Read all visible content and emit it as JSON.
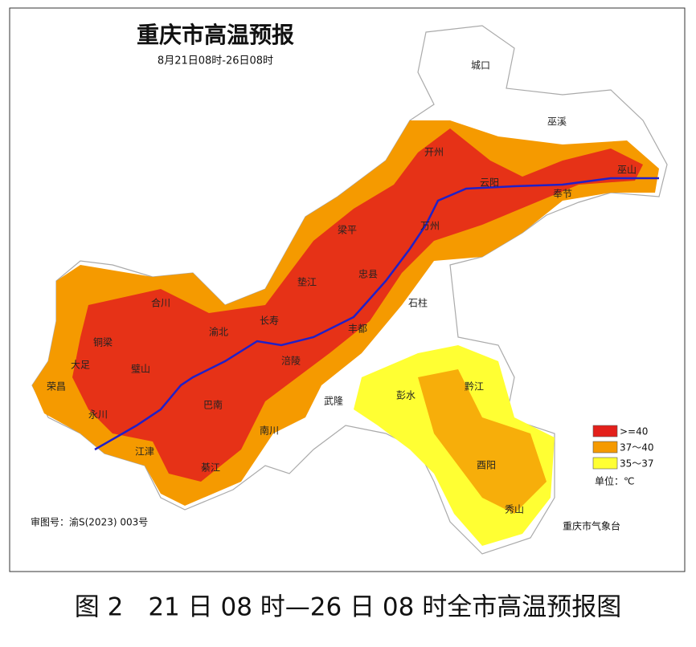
{
  "title": "重庆市高温预报",
  "subtitle": "8月21日08时-26日08时",
  "legend": {
    "items": [
      {
        "label": ">=40",
        "color": "#e3201b"
      },
      {
        "label": "37～40",
        "color": "#f59a00"
      },
      {
        "label": "35～37",
        "color": "#ffff33"
      }
    ],
    "unit": "单位：℃"
  },
  "approval": "审图号：渝S(2023) 003号",
  "agency": "重庆市气象台",
  "caption": "图 2　21 日 08 时—26 日 08 时全市高温预报图",
  "places": [
    "城口",
    "巫溪",
    "开州",
    "云阳",
    "奉节",
    "巫山",
    "万州",
    "梁平",
    "忠县",
    "垫江",
    "石柱",
    "丰都",
    "长寿",
    "涪陵",
    "武隆",
    "彭水",
    "黔江",
    "酉阳",
    "秀山",
    "南川",
    "綦江",
    "江津",
    "永川",
    "荣昌",
    "铜梁",
    "合川",
    "渝北",
    "巴南",
    "璧山",
    "大足"
  ]
}
